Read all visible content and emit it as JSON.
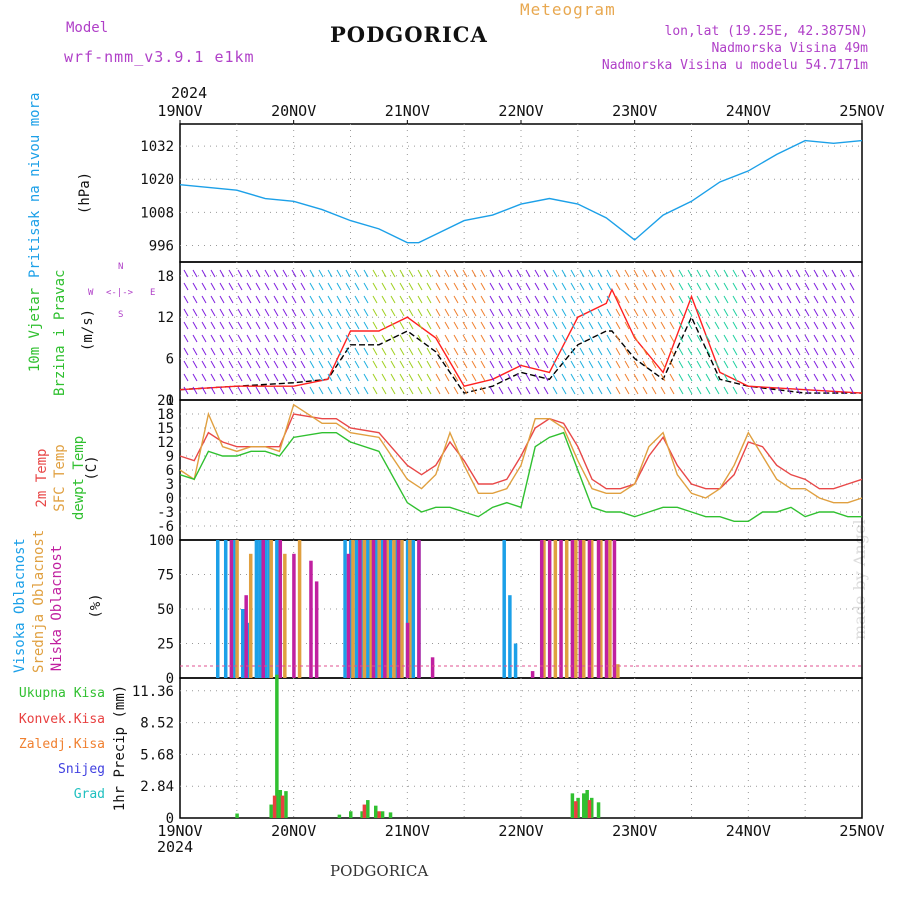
{
  "header": {
    "model_label": "Model",
    "model_name": "wrf-nmm_v3.9.1 e1km",
    "station": "PODGORICA",
    "title": "Meteogram",
    "lonlat": "lon,lat (19.25E, 42.3875N)",
    "elevation": "Nadmorska Visina 49m",
    "model_elevation": "Nadmorska Visina u modelu 54.7171m",
    "year_top": "2024",
    "year_bottom": "2024",
    "footer": "PODGORICA",
    "watermark": "made by Angel"
  },
  "x_ticks": [
    "19NOV",
    "20NOV",
    "21NOV",
    "22NOV",
    "23NOV",
    "24NOV",
    "25NOV"
  ],
  "panels": {
    "pressure": {
      "label": "Pritisak na nivou mora",
      "unit": "(hPa)",
      "color": "#1ca0e8"
    },
    "wind": {
      "label1": "10m Vjetar",
      "label2": "Brzina i Pravac",
      "unit": "(m/s)",
      "compass_n": "N",
      "compass_s": "S",
      "compass_w": "W",
      "compass_e": "E"
    },
    "temperature": {
      "label_2m": "2m Temp",
      "label_sfc": "SFC Temp",
      "label_dew": "dewpt Temp",
      "unit": "(C)"
    },
    "cloud": {
      "label_high": "Visoka Oblacnost",
      "label_mid": "Srednja Oblacnost",
      "label_low": "Niska Oblacnost",
      "unit": "(%)"
    },
    "precip": {
      "unit": "1hr Precip (mm)",
      "legend": [
        {
          "label": "Ukupna Kisa",
          "color": "#30c030"
        },
        {
          "label": "Konvek.Kisa",
          "color": "#e84040"
        },
        {
          "label": "Zaledj.Kisa",
          "color": "#f08030"
        },
        {
          "label": "Snijeg",
          "color": "#4040e0"
        },
        {
          "label": "Grad",
          "color": "#20c0c0"
        }
      ]
    }
  },
  "chart_data": [
    {
      "type": "line",
      "panel": "pressure",
      "ylim": [
        990,
        1040
      ],
      "yticks": [
        996,
        1008,
        1020,
        1032
      ],
      "x_days": [
        0,
        0.25,
        0.5,
        0.75,
        1.0,
        1.25,
        1.5,
        1.75,
        2.0,
        2.1,
        2.25,
        2.5,
        2.75,
        3.0,
        3.25,
        3.5,
        3.75,
        4.0,
        4.25,
        4.5,
        4.75,
        5.0,
        5.25,
        5.5,
        5.75,
        6.0
      ],
      "series": [
        {
          "color": "#1ca0e8",
          "values": [
            1018,
            1017,
            1016,
            1013,
            1012,
            1009,
            1005,
            1002,
            997,
            997,
            1000,
            1005,
            1007,
            1011,
            1013,
            1011,
            1006,
            998,
            1007,
            1012,
            1019,
            1023,
            1029,
            1034,
            1033,
            1034
          ]
        }
      ]
    },
    {
      "type": "line",
      "panel": "wind",
      "ylim": [
        0,
        20
      ],
      "yticks": [
        0,
        6,
        12,
        18
      ],
      "x_days": [
        0,
        0.5,
        1.0,
        1.3,
        1.5,
        1.75,
        2.0,
        2.25,
        2.5,
        2.75,
        3.0,
        3.25,
        3.5,
        3.75,
        3.8,
        4.0,
        4.25,
        4.5,
        4.75,
        5.0,
        5.5,
        6.0
      ],
      "series": [
        {
          "color": "#000000",
          "values": [
            1.5,
            2,
            2.5,
            3,
            8,
            8,
            10,
            7,
            1,
            2,
            4,
            3,
            8,
            10,
            10,
            6,
            3,
            12,
            3,
            2,
            1,
            1
          ]
        },
        {
          "color": "#ff2020",
          "values": [
            1.5,
            2,
            2,
            3,
            10,
            10,
            12,
            9,
            2,
            3,
            5,
            4,
            12,
            14,
            16,
            9,
            4,
            15,
            4,
            2,
            1.5,
            1
          ]
        }
      ]
    },
    {
      "type": "line",
      "panel": "temperature",
      "ylim": [
        -9,
        21
      ],
      "yticks": [
        -6,
        -3,
        0,
        3,
        6,
        9,
        12,
        15,
        18,
        21
      ],
      "x_days": [
        0,
        0.125,
        0.25,
        0.375,
        0.5,
        0.625,
        0.75,
        0.875,
        1.0,
        1.25,
        1.375,
        1.5,
        1.75,
        2.0,
        2.125,
        2.25,
        2.375,
        2.5,
        2.625,
        2.75,
        2.875,
        3.0,
        3.125,
        3.25,
        3.375,
        3.5,
        3.625,
        3.75,
        3.875,
        4.0,
        4.125,
        4.25,
        4.375,
        4.5,
        4.625,
        4.75,
        4.875,
        5.0,
        5.125,
        5.25,
        5.375,
        5.5,
        5.625,
        5.75,
        5.875,
        6.0
      ],
      "series": [
        {
          "name": "2m Temp",
          "color": "#e84848",
          "values": [
            9,
            8,
            14,
            12,
            11,
            11,
            11,
            11,
            18,
            17,
            17,
            15,
            14,
            7,
            5,
            7,
            12,
            8,
            3,
            3,
            4,
            9,
            15,
            17,
            16,
            11,
            4,
            2,
            2,
            3,
            9,
            13,
            7,
            3,
            2,
            2,
            5,
            12,
            11,
            7,
            5,
            4,
            2,
            2,
            3,
            4
          ]
        },
        {
          "name": "SFC Temp",
          "color": "#e0a040",
          "values": [
            6,
            4,
            18,
            11,
            10,
            11,
            11,
            10,
            20,
            16,
            16,
            14,
            13,
            4,
            2,
            5,
            14,
            7,
            1,
            1,
            2,
            7,
            17,
            17,
            15,
            8,
            2,
            1,
            1,
            3,
            11,
            14,
            5,
            1,
            0,
            2,
            7,
            14,
            9,
            4,
            2,
            2,
            0,
            -1,
            -1,
            0
          ]
        },
        {
          "name": "dewpt Temp",
          "color": "#30c030",
          "values": [
            5,
            4,
            10,
            9,
            9,
            10,
            10,
            9,
            13,
            14,
            14,
            12,
            10,
            -1,
            -3,
            -2,
            -2,
            -3,
            -4,
            -2,
            -1,
            -2,
            11,
            13,
            14,
            6,
            -2,
            -3,
            -3,
            -4,
            -3,
            -2,
            -2,
            -3,
            -4,
            -4,
            -5,
            -5,
            -3,
            -3,
            -2,
            -4,
            -3,
            -3,
            -4,
            -4
          ]
        }
      ]
    },
    {
      "type": "bar",
      "panel": "cloud",
      "ylim": [
        0,
        100
      ],
      "yticks": [
        0,
        25,
        50,
        75,
        100
      ],
      "series": [
        {
          "name": "Visoka Oblacnost",
          "color": "#1ca0e8",
          "x_days": [
            0.33,
            0.4,
            0.48,
            0.55,
            0.6,
            0.67,
            0.7,
            0.75,
            0.78,
            0.85,
            1.45,
            1.5,
            1.55,
            1.6,
            1.65,
            1.72,
            1.78,
            1.85,
            1.9,
            1.95,
            2.0,
            2.05,
            2.1,
            2.85,
            2.9,
            2.95
          ],
          "values": [
            100,
            100,
            100,
            50,
            40,
            100,
            100,
            100,
            100,
            100,
            100,
            100,
            100,
            100,
            100,
            100,
            100,
            100,
            100,
            100,
            100,
            100,
            100,
            100,
            60,
            25
          ]
        },
        {
          "name": "Srednja Oblacnost",
          "color": "#e0a040",
          "x_days": [
            0.5,
            0.62,
            0.8,
            0.92,
            1.05,
            1.52,
            1.62,
            1.68,
            1.75,
            1.82,
            1.88,
            1.95,
            2.02,
            3.2,
            3.3,
            3.4,
            3.48,
            3.55,
            3.62,
            3.7,
            3.78,
            3.85
          ],
          "values": [
            100,
            90,
            100,
            90,
            100,
            100,
            100,
            100,
            100,
            100,
            100,
            100,
            100,
            100,
            100,
            100,
            100,
            100,
            100,
            100,
            100,
            10
          ]
        },
        {
          "name": "Niska Oblacnost",
          "color": "#c020a0",
          "x_days": [
            0.45,
            0.58,
            0.73,
            0.88,
            1.0,
            1.15,
            1.2,
            1.48,
            1.58,
            1.7,
            1.8,
            1.92,
            2.0,
            2.1,
            2.22,
            3.1,
            3.18,
            3.25,
            3.35,
            3.45,
            3.52,
            3.6,
            3.68,
            3.75,
            3.82
          ],
          "values": [
            100,
            60,
            100,
            100,
            90,
            85,
            70,
            90,
            100,
            100,
            100,
            100,
            40,
            100,
            15,
            5,
            100,
            100,
            100,
            100,
            100,
            100,
            100,
            100,
            100
          ]
        }
      ]
    },
    {
      "type": "bar",
      "panel": "precip",
      "ylim": [
        0,
        12.5
      ],
      "yticks": [
        0,
        2.84,
        5.68,
        8.52,
        11.36
      ],
      "series": [
        {
          "name": "Ukupna Kisa",
          "color": "#30c030",
          "x_days": [
            0.5,
            0.8,
            0.85,
            0.88,
            0.93,
            1.4,
            1.5,
            1.6,
            1.65,
            1.72,
            1.78,
            1.85,
            3.45,
            3.5,
            3.55,
            3.58,
            3.62,
            3.68
          ],
          "values": [
            0.4,
            1.2,
            12.8,
            2.5,
            2.4,
            0.3,
            0.6,
            0.6,
            1.6,
            1.1,
            0.6,
            0.5,
            2.2,
            1.8,
            2.2,
            2.5,
            1.8,
            1.4
          ]
        },
        {
          "name": "Konvek.Kisa",
          "color": "#e84040",
          "x_days": [
            0.83,
            0.9,
            1.62,
            1.75,
            3.48,
            3.6
          ],
          "values": [
            2.0,
            2.0,
            1.2,
            0.6,
            1.5,
            1.6
          ]
        }
      ]
    }
  ]
}
